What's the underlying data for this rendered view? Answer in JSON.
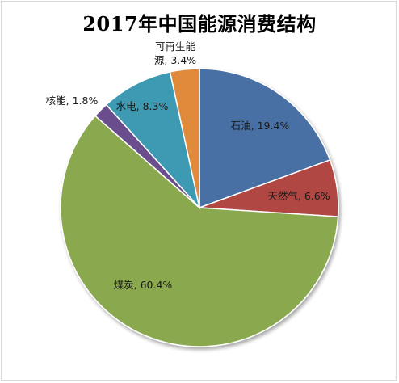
{
  "chart_data": {
    "type": "pie",
    "title": "2017年中国能源消费结构",
    "slices": [
      {
        "name": "石油",
        "value": 19.4,
        "label": "石油, 19.4%",
        "color": "#4a6fa5"
      },
      {
        "name": "天然气",
        "value": 6.6,
        "label": "天然气, 6.6%",
        "color": "#b04643"
      },
      {
        "name": "煤炭",
        "value": 60.4,
        "label": "煤炭, 60.4%",
        "color": "#8aa94f"
      },
      {
        "name": "核能",
        "value": 1.8,
        "label": "核能, 1.8%",
        "color": "#6a4e8c"
      },
      {
        "name": "水电",
        "value": 8.3,
        "label": "水电, 8.3%",
        "color": "#3c9ab2"
      },
      {
        "name": "可再生能源",
        "value": 3.4,
        "label_lines": [
          "可再生能",
          "源, 3.4%"
        ],
        "color": "#e08a3a"
      }
    ],
    "start_angle_deg": 0,
    "direction": "clockwise",
    "legend": "none"
  }
}
